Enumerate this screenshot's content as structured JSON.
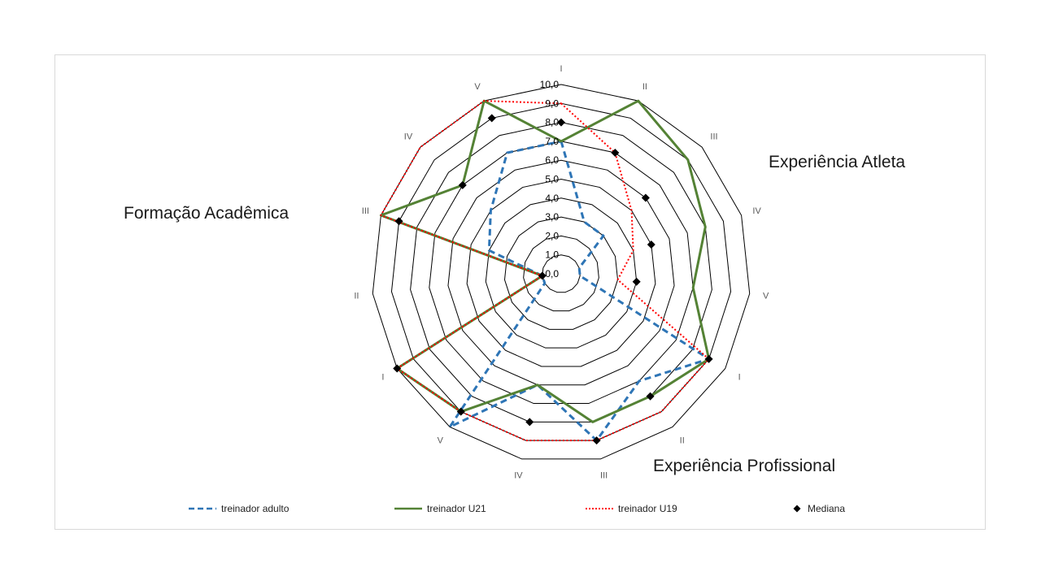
{
  "chart_data": {
    "type": "radar",
    "axis_labels": [
      "I",
      "II",
      "III",
      "IV",
      "V",
      "I",
      "II",
      "III",
      "IV",
      "V",
      "I",
      "II",
      "III",
      "IV",
      "V"
    ],
    "r_ticks": [
      "0,0",
      "1,0",
      "2,0",
      "3,0",
      "4,0",
      "5,0",
      "6,0",
      "7,0",
      "8,0",
      "9,0",
      "10,0"
    ],
    "r_range": [
      0,
      10
    ],
    "group_labels": [
      "Experiência Atleta",
      "Experiência Profissional",
      "Formação Acadêmica"
    ],
    "series": [
      {
        "name": "treinador adulto",
        "color": "#2e75b6",
        "style": "dashed",
        "values": [
          7,
          3,
          3,
          1,
          1,
          9,
          7,
          9,
          6,
          10,
          1,
          1,
          4,
          5,
          7
        ]
      },
      {
        "name": "treinador U21",
        "color": "#548235",
        "style": "solid",
        "values": [
          7,
          10,
          9,
          8,
          7,
          9,
          8,
          8,
          6,
          9,
          10,
          1,
          10,
          7,
          10
        ]
      },
      {
        "name": "treinador U19",
        "color": "#ff0000",
        "style": "dotted",
        "values": [
          9,
          7,
          5,
          4,
          3,
          9,
          9,
          9,
          9,
          9,
          10,
          1,
          10,
          10,
          10
        ]
      },
      {
        "name": "Mediana",
        "color": "#000000",
        "style": "marker",
        "values": [
          8,
          7,
          6,
          5,
          4,
          9,
          8,
          9,
          8,
          9,
          10,
          1,
          9,
          7,
          9
        ]
      }
    ],
    "legend_position": "bottom",
    "grid": true
  }
}
